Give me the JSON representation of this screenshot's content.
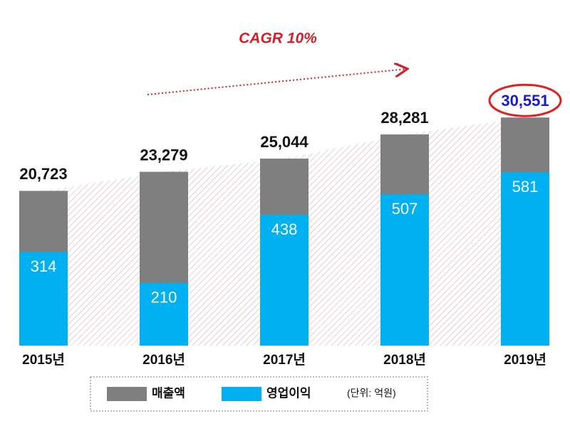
{
  "chart_data": {
    "type": "bar",
    "annotation": "CAGR 10%",
    "unit_note": "(단위: 억원)",
    "categories": [
      "2015년",
      "2016년",
      "2017년",
      "2018년",
      "2019년"
    ],
    "series": [
      {
        "name": "매출액",
        "color": "#7f7f7f",
        "values": [
          20723,
          23279,
          25044,
          28281,
          30551
        ],
        "value_labels": [
          "20,723",
          "23,279",
          "25,044",
          "28,281",
          "30,551"
        ]
      },
      {
        "name": "영업이익",
        "color": "#00b0f0",
        "axis": "y2",
        "values": [
          314,
          210,
          438,
          507,
          581
        ]
      }
    ],
    "ylim": [
      0,
      40000
    ],
    "y2lim": [
      0,
      1000
    ]
  }
}
